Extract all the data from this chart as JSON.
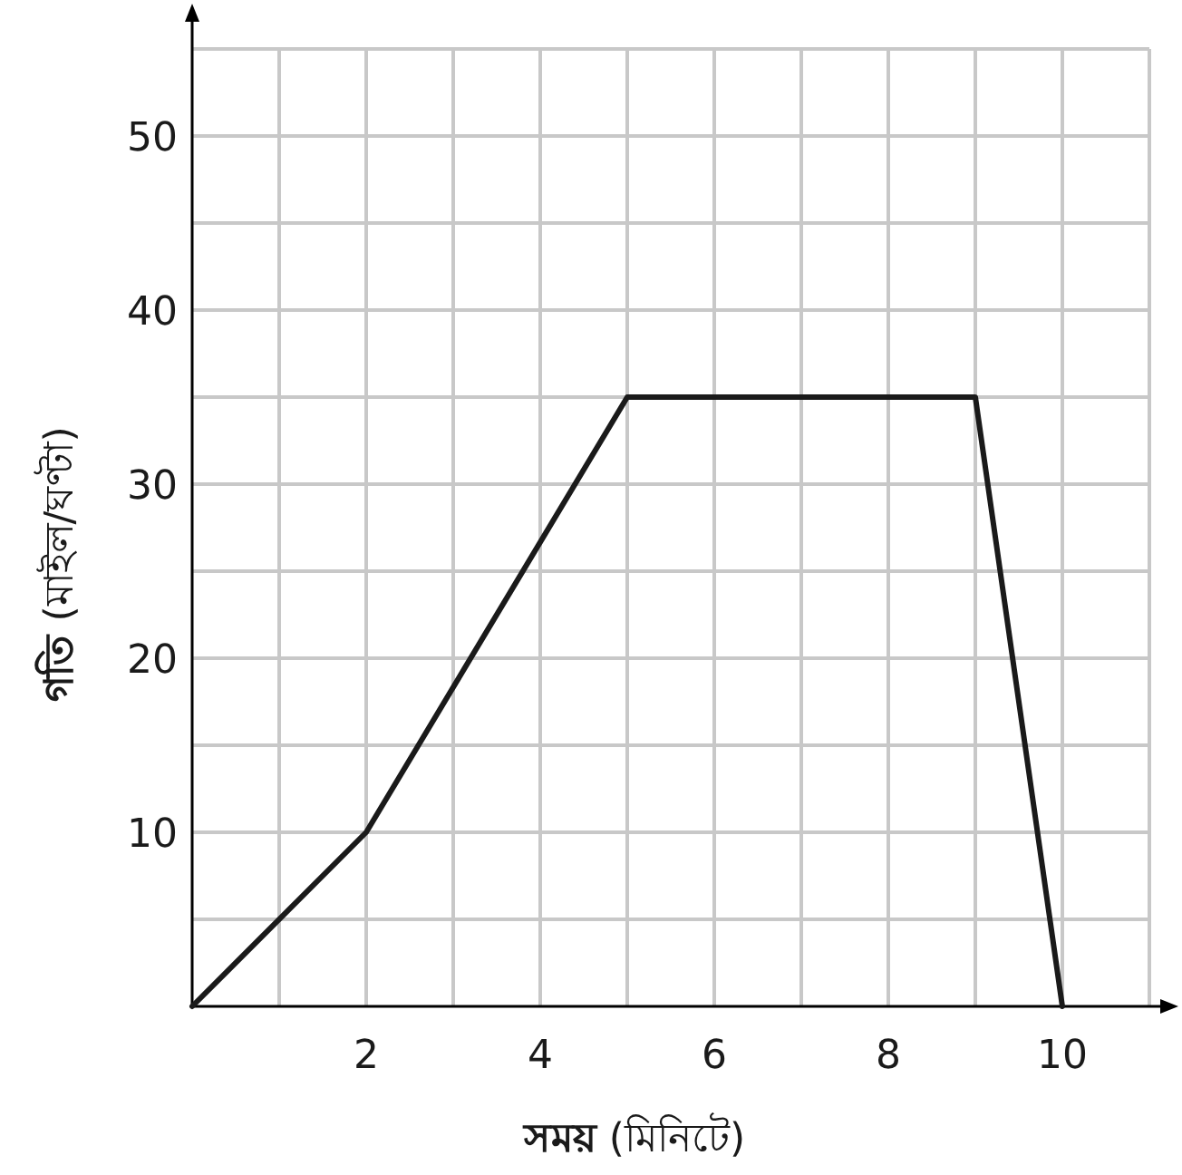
{
  "chart_data": {
    "type": "line",
    "xlabel": "**সময়** (মিনিটে)",
    "ylabel": "**গতি** (মাইল/ঘণ্টা)",
    "x": [
      0,
      2,
      5,
      9,
      10
    ],
    "series": [
      {
        "color": "#1a1a1a",
        "values": [
          0,
          10,
          35,
          35,
          0
        ]
      }
    ],
    "xlim": [
      0,
      11
    ],
    "ylim": [
      0,
      55
    ],
    "xticks": [
      {
        "value": 1,
        "label": null
      },
      2,
      {
        "value": 3,
        "label": null
      },
      4,
      {
        "value": 5,
        "label": null
      },
      6,
      {
        "value": 7,
        "label": null
      },
      8,
      {
        "value": 9,
        "label": null
      },
      10,
      {
        "value": 11,
        "label": null
      }
    ],
    "yticks": [
      {
        "value": 5,
        "label": null
      },
      10,
      {
        "value": 15,
        "label": null
      },
      20,
      {
        "value": 25,
        "label": null
      },
      30,
      {
        "value": 35,
        "label": null
      },
      40,
      {
        "value": 45,
        "label": null
      },
      50,
      {
        "value": 55,
        "label": null
      }
    ],
    "grid": true,
    "marker": "none",
    "line_style": "solid"
  }
}
